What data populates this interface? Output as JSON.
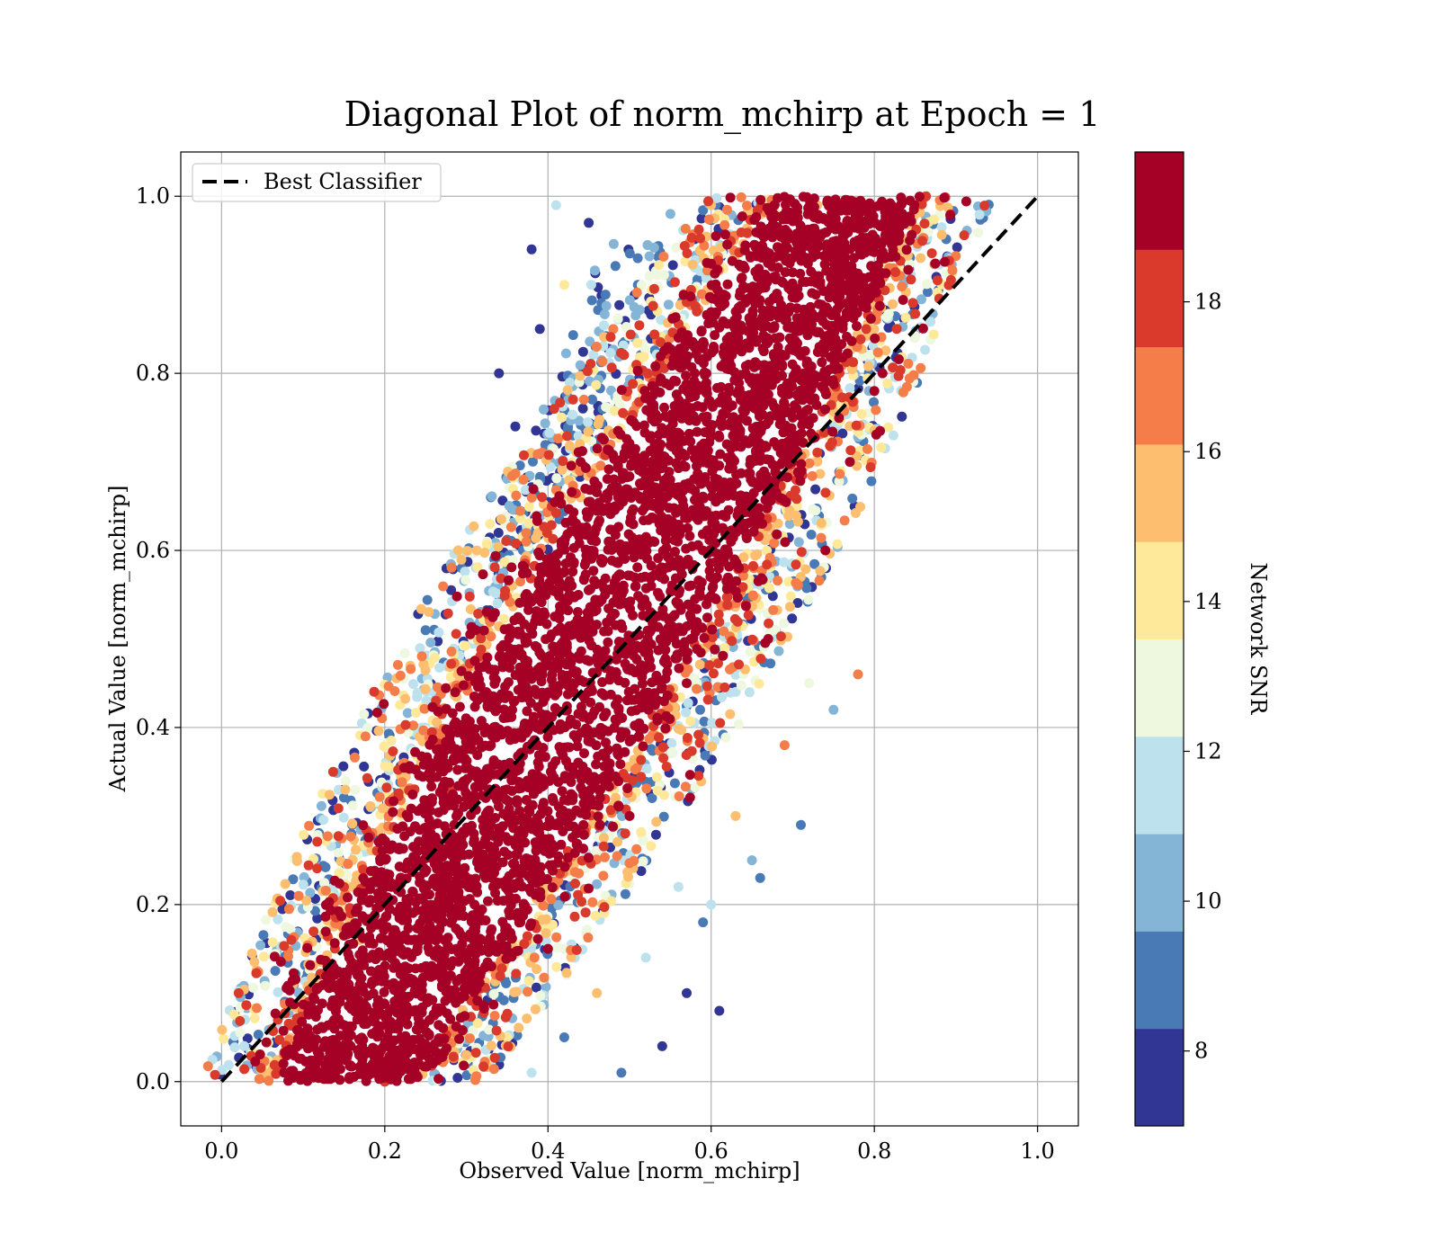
{
  "chart_data": {
    "type": "scatter",
    "title": "Diagonal Plot of norm_mchirp at Epoch = 1",
    "xlabel": "Observed Value [norm_mchirp]",
    "ylabel": "Actual Value [norm_mchirp]",
    "xlim": [
      -0.05,
      1.05
    ],
    "ylim": [
      -0.05,
      1.05
    ],
    "x_ticks": [
      "0.0",
      "0.2",
      "0.4",
      "0.6",
      "0.8",
      "1.0"
    ],
    "y_ticks": [
      "0.0",
      "0.2",
      "0.4",
      "0.6",
      "0.8",
      "1.0"
    ],
    "grid": true,
    "legend": {
      "placement": "top-left",
      "entries": [
        {
          "label": "Best Classifier",
          "style": "dashed",
          "color": "#000000"
        }
      ]
    },
    "reference_line": {
      "name": "Best Classifier",
      "x": [
        0.0,
        1.0
      ],
      "y": [
        0.0,
        1.0
      ]
    },
    "colorbar": {
      "label": "Network SNR",
      "range": [
        7,
        20
      ],
      "ticks": [
        "8",
        "10",
        "12",
        "14",
        "16",
        "18"
      ],
      "tick_values": [
        8,
        10,
        12,
        14,
        16,
        18
      ],
      "colors": [
        "#313695",
        "#4a7ab6",
        "#85b5d6",
        "#bde2ed",
        "#edf8de",
        "#fee99a",
        "#fdbe6f",
        "#f47d4a",
        "#da3a2c",
        "#a50026"
      ]
    },
    "points_description_note": null,
    "series": [
      {
        "kind": "scatter_cloud",
        "points": [
          [
            0.12,
            0.03,
            19
          ],
          [
            0.13,
            0.12,
            19
          ],
          [
            0.14,
            0.08,
            17
          ],
          [
            0.15,
            0.22,
            18
          ],
          [
            0.17,
            0.16,
            15
          ],
          [
            0.18,
            0.27,
            17
          ],
          [
            0.2,
            0.0,
            18
          ],
          [
            0.22,
            0.3,
            14
          ],
          [
            0.22,
            0.05,
            19
          ],
          [
            0.24,
            0.25,
            19
          ],
          [
            0.25,
            0.4,
            11
          ],
          [
            0.26,
            0.12,
            19
          ],
          [
            0.28,
            0.47,
            9
          ],
          [
            0.28,
            0.33,
            18
          ],
          [
            0.29,
            0.6,
            15
          ],
          [
            0.3,
            0.03,
            16
          ],
          [
            0.31,
            0.2,
            19
          ],
          [
            0.32,
            0.53,
            10
          ],
          [
            0.33,
            0.66,
            9
          ],
          [
            0.33,
            0.38,
            19
          ],
          [
            0.34,
            0.8,
            8
          ],
          [
            0.35,
            0.05,
            14
          ],
          [
            0.35,
            0.48,
            19
          ],
          [
            0.36,
            0.74,
            8
          ],
          [
            0.37,
            0.28,
            19
          ],
          [
            0.38,
            0.94,
            8
          ],
          [
            0.38,
            0.01,
            12
          ],
          [
            0.39,
            0.85,
            8
          ],
          [
            0.4,
            0.62,
            16
          ],
          [
            0.4,
            0.15,
            19
          ],
          [
            0.41,
            0.99,
            11
          ],
          [
            0.42,
            0.9,
            14
          ],
          [
            0.42,
            0.05,
            9
          ],
          [
            0.43,
            0.45,
            19
          ],
          [
            0.44,
            0.7,
            19
          ],
          [
            0.45,
            0.97,
            8
          ],
          [
            0.46,
            0.1,
            15
          ],
          [
            0.47,
            0.55,
            19
          ],
          [
            0.48,
            0.85,
            17
          ],
          [
            0.49,
            0.01,
            9
          ],
          [
            0.5,
            0.3,
            19
          ],
          [
            0.51,
            0.93,
            9
          ],
          [
            0.52,
            0.14,
            11
          ],
          [
            0.53,
            0.65,
            19
          ],
          [
            0.54,
            0.04,
            8
          ],
          [
            0.55,
            0.98,
            10
          ],
          [
            0.56,
            0.22,
            12
          ],
          [
            0.57,
            0.45,
            19
          ],
          [
            0.57,
            0.1,
            8
          ],
          [
            0.58,
            0.8,
            19
          ],
          [
            0.59,
            0.18,
            9
          ],
          [
            0.6,
            0.99,
            16
          ],
          [
            0.6,
            0.2,
            11
          ],
          [
            0.61,
            0.08,
            8
          ],
          [
            0.62,
            0.6,
            19
          ],
          [
            0.63,
            0.3,
            16
          ],
          [
            0.64,
            0.92,
            19
          ],
          [
            0.65,
            0.25,
            10
          ],
          [
            0.66,
            0.23,
            9
          ],
          [
            0.67,
            0.5,
            19
          ],
          [
            0.68,
            0.98,
            14
          ],
          [
            0.69,
            0.38,
            17
          ],
          [
            0.7,
            0.75,
            19
          ],
          [
            0.71,
            0.29,
            9
          ],
          [
            0.72,
            0.45,
            13
          ],
          [
            0.73,
            0.99,
            15
          ],
          [
            0.74,
            0.6,
            19
          ],
          [
            0.75,
            0.42,
            10
          ],
          [
            0.76,
            0.92,
            18
          ],
          [
            0.77,
            0.7,
            19
          ],
          [
            0.78,
            0.46,
            17
          ],
          [
            0.79,
            0.85,
            18
          ],
          [
            0.8,
            0.78,
            19
          ],
          [
            0.81,
            0.8,
            19
          ]
        ]
      }
    ]
  }
}
